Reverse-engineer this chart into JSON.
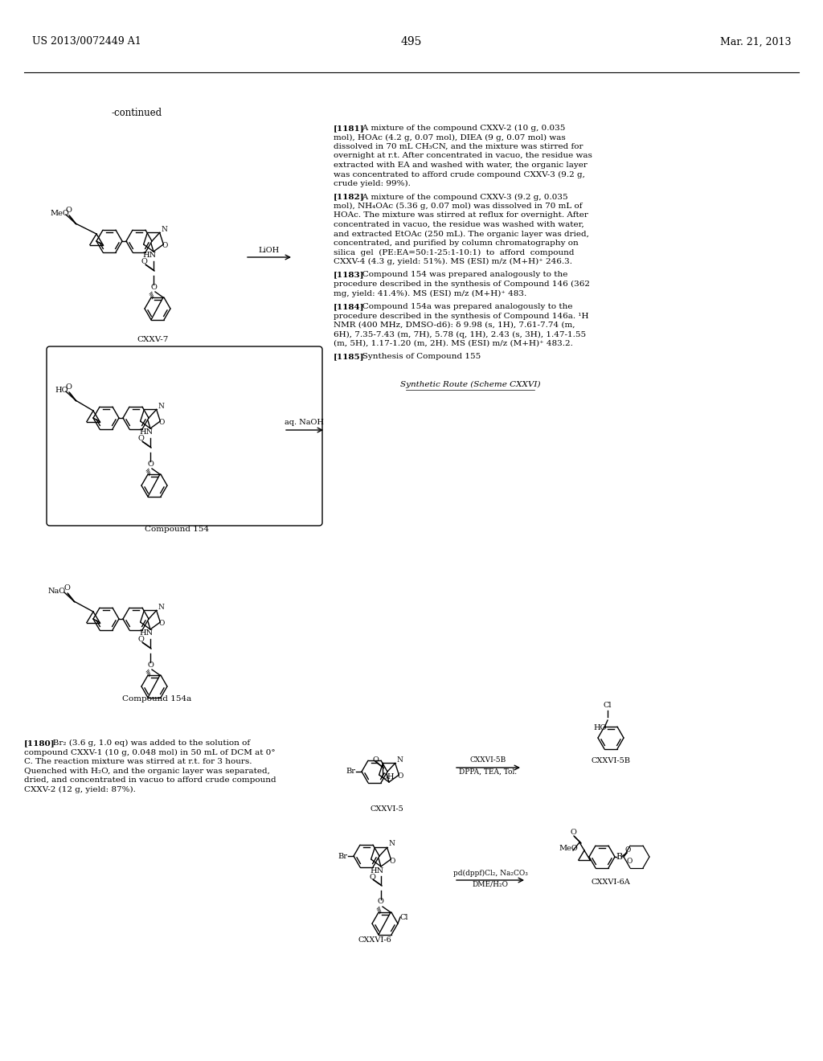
{
  "bg": "#ffffff",
  "header_left": "US 2013/0072449 A1",
  "header_right": "Mar. 21, 2013",
  "page_num": "495",
  "continued": "-continued",
  "para_1181_tag": "[1181]",
  "para_1181_lines": [
    "   A mixture of the compound CXXV-2 (10 g, 0.035",
    "mol), HOAc (4.2 g, 0.07 mol), DIEA (9 g, 0.07 mol) was",
    "dissolved in 70 mL CH₃CN, and the mixture was stirred for",
    "overnight at r.t. After concentrated in vacuo, the residue was",
    "extracted with EA and washed with water, the organic layer",
    "was concentrated to afford crude compound CXXV-3 (9.2 g,",
    "crude yield: 99%)."
  ],
  "para_1182_tag": "[1182]",
  "para_1182_lines": [
    "   A mixture of the compound CXXV-3 (9.2 g, 0.035",
    "mol), NH₄OAc (5.36 g, 0.07 mol) was dissolved in 70 mL of",
    "HOAc. The mixture was stirred at reflux for overnight. After",
    "concentrated in vacuo, the residue was washed with water,",
    "and extracted EtOAc (250 mL). The organic layer was dried,",
    "concentrated, and purified by column chromatography on",
    "silica  gel  (PE:EA=50:1-25:1-10:1)  to  afford  compound",
    "CXXV-4 (4.3 g, yield: 51%). MS (ESI) m/z (M+H)⁺ 246.3."
  ],
  "para_1183_tag": "[1183]",
  "para_1183_lines": [
    "   Compound 154 was prepared analogously to the",
    "procedure described in the synthesis of Compound 146 (362",
    "mg, yield: 41.4%). MS (ESI) m/z (M+H)⁺ 483."
  ],
  "para_1184_tag": "[1184]",
  "para_1184_lines": [
    "   Compound 154a was prepared analogously to the",
    "procedure described in the synthesis of Compound 146a. ¹H",
    "NMR (400 MHz, DMSO-d6): δ 9.98 (s, 1H), 7.61-7.74 (m,",
    "6H), 7.35-7.43 (m, 7H), 5.78 (q, 1H), 2.43 (s, 3H), 1.47-1.55",
    "(m, 5H), 1.17-1.20 (m, 2H). MS (ESI) m/z (M+H)⁺ 483.2."
  ],
  "para_1185_tag": "[1185]",
  "para_1185_lines": [
    "   Synthesis of Compound 155"
  ],
  "para_1180_tag": "[1180]",
  "para_1180_lines": [
    "   Br₂ (3.6 g, 1.0 eq) was added to the solution of",
    "compound CXXV-1 (10 g, 0.048 mol) in 50 mL of DCM at 0°",
    "C. The reaction mixture was stirred at r.t. for 3 hours.",
    "Quenched with H₂O, and the organic layer was separated,",
    "dried, and concentrated in vacuo to afford crude compound",
    "CXXV-2 (12 g, yield: 87%)."
  ],
  "scheme_title": "Synthetic Route (Scheme CXXVI)",
  "label_cxxv7": "CXXV-7",
  "label_comp154": "Compound 154",
  "label_comp154a": "Compound 154a",
  "label_cxxvi5": "CXXVI-5",
  "label_cxxvi5b": "CXXVI-5B",
  "label_cxxvi6": "CXXVI-6",
  "label_cxxvi6a": "CXXVI-6A",
  "arrow_lioh": "LiOH",
  "arrow_naoh": "aq. NaOH",
  "arrow_dppa": "DPPA, TEA, Tol.",
  "arrow_pd_l1": "pd(dppf)Cl₂, Na₂CO₃",
  "arrow_pd_l2": "DME/H₂O"
}
